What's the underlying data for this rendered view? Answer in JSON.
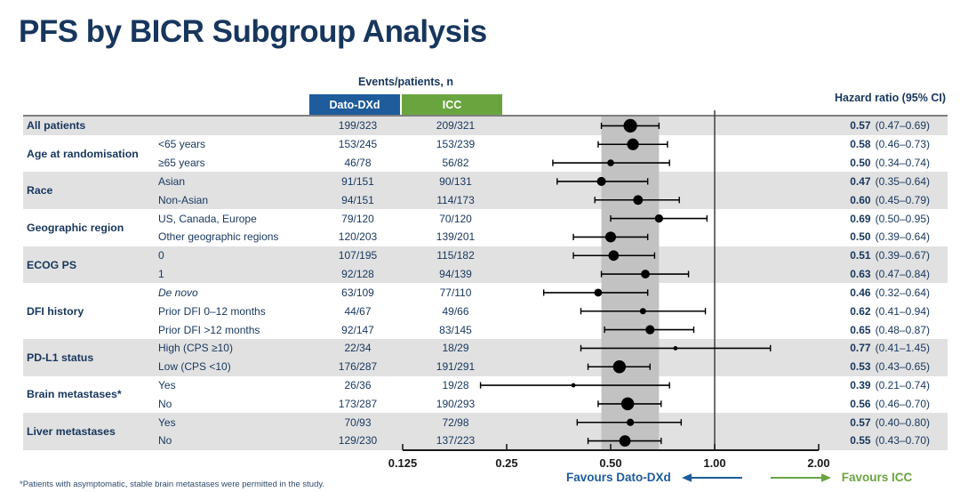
{
  "title": "PFS by BICR Subgroup Analysis",
  "header": {
    "events_label": "Events/patients, n",
    "arm1": "Dato-DXd",
    "arm2": "ICC",
    "hr_label": "Hazard ratio (95% CI)"
  },
  "colors": {
    "navy": "#17365d",
    "blue": "#1e5c9c",
    "green": "#6aa43f",
    "row_gray": "#e1e1e1",
    "band_gray": "#c2c2c2",
    "marker_black": "#000000"
  },
  "favours": {
    "left": "Favours Dato-DXd",
    "right": "Favours ICC"
  },
  "footnote": "*Patients with asymptomatic, stable brain metastases were permitted in the study.",
  "chart_data": {
    "type": "forest",
    "xscale": "log2",
    "xlim": [
      0.125,
      2.0
    ],
    "xticks": [
      0.125,
      0.25,
      0.5,
      1.0,
      2.0
    ],
    "xtick_labels": [
      "0.125",
      "0.25",
      "0.50",
      "1.00",
      "2.00"
    ],
    "reference_line": 1.0,
    "shaded_band": [
      0.47,
      0.69
    ],
    "groups": [
      {
        "label": "All patients",
        "shaded": true,
        "rows": [
          {
            "sub": "",
            "dato": "199/323",
            "icc": "209/321",
            "hr": 0.57,
            "lo": 0.47,
            "hi": 0.69,
            "hr_label": "0.57",
            "ci_label": "(0.47–0.69)"
          }
        ]
      },
      {
        "label": "Age at randomisation",
        "shaded": false,
        "rows": [
          {
            "sub": "<65 years",
            "dato": "153/245",
            "icc": "153/239",
            "hr": 0.58,
            "lo": 0.46,
            "hi": 0.73,
            "hr_label": "0.58",
            "ci_label": "(0.46–0.73)"
          },
          {
            "sub": "≥65 years",
            "dato": "46/78",
            "icc": "56/82",
            "hr": 0.5,
            "lo": 0.34,
            "hi": 0.74,
            "hr_label": "0.50",
            "ci_label": "(0.34–0.74)"
          }
        ]
      },
      {
        "label": "Race",
        "shaded": true,
        "rows": [
          {
            "sub": "Asian",
            "dato": "91/151",
            "icc": "90/131",
            "hr": 0.47,
            "lo": 0.35,
            "hi": 0.64,
            "hr_label": "0.47",
            "ci_label": "(0.35–0.64)"
          },
          {
            "sub": "Non-Asian",
            "dato": "94/151",
            "icc": "114/173",
            "hr": 0.6,
            "lo": 0.45,
            "hi": 0.79,
            "hr_label": "0.60",
            "ci_label": "(0.45–0.79)"
          }
        ]
      },
      {
        "label": "Geographic region",
        "shaded": false,
        "rows": [
          {
            "sub": "US, Canada, Europe",
            "dato": "79/120",
            "icc": "70/120",
            "hr": 0.69,
            "lo": 0.5,
            "hi": 0.95,
            "hr_label": "0.69",
            "ci_label": "(0.50–0.95)"
          },
          {
            "sub": "Other geographic regions",
            "dato": "120/203",
            "icc": "139/201",
            "hr": 0.5,
            "lo": 0.39,
            "hi": 0.64,
            "hr_label": "0.50",
            "ci_label": "(0.39–0.64)"
          }
        ]
      },
      {
        "label": "ECOG PS",
        "shaded": true,
        "rows": [
          {
            "sub": "0",
            "dato": "107/195",
            "icc": "115/182",
            "hr": 0.51,
            "lo": 0.39,
            "hi": 0.67,
            "hr_label": "0.51",
            "ci_label": "(0.39–0.67)"
          },
          {
            "sub": "1",
            "dato": "92/128",
            "icc": "94/139",
            "hr": 0.63,
            "lo": 0.47,
            "hi": 0.84,
            "hr_label": "0.63",
            "ci_label": "(0.47–0.84)"
          }
        ]
      },
      {
        "label": "DFI history",
        "shaded": false,
        "rows": [
          {
            "sub": "De novo",
            "italic": true,
            "dato": "63/109",
            "icc": "77/110",
            "hr": 0.46,
            "lo": 0.32,
            "hi": 0.64,
            "hr_label": "0.46",
            "ci_label": "(0.32–0.64)"
          },
          {
            "sub": "Prior DFI 0–12 months",
            "dato": "44/67",
            "icc": "49/66",
            "hr": 0.62,
            "lo": 0.41,
            "hi": 0.94,
            "hr_label": "0.62",
            "ci_label": "(0.41–0.94)"
          },
          {
            "sub": "Prior DFI >12 months",
            "dato": "92/147",
            "icc": "83/145",
            "hr": 0.65,
            "lo": 0.48,
            "hi": 0.87,
            "hr_label": "0.65",
            "ci_label": "(0.48–0.87)"
          }
        ]
      },
      {
        "label": "PD-L1 status",
        "shaded": true,
        "rows": [
          {
            "sub": "High (CPS ≥10)",
            "dato": "22/34",
            "icc": "18/29",
            "hr": 0.77,
            "lo": 0.41,
            "hi": 1.45,
            "hr_label": "0.77",
            "ci_label": "(0.41–1.45)"
          },
          {
            "sub": "Low (CPS <10)",
            "dato": "176/287",
            "icc": "191/291",
            "hr": 0.53,
            "lo": 0.43,
            "hi": 0.65,
            "hr_label": "0.53",
            "ci_label": "(0.43–0.65)"
          }
        ]
      },
      {
        "label": "Brain metastases*",
        "shaded": false,
        "rows": [
          {
            "sub": "Yes",
            "dato": "26/36",
            "icc": "19/28",
            "hr": 0.39,
            "lo": 0.21,
            "hi": 0.74,
            "hr_label": "0.39",
            "ci_label": "(0.21–0.74)"
          },
          {
            "sub": "No",
            "dato": "173/287",
            "icc": "190/293",
            "hr": 0.56,
            "lo": 0.46,
            "hi": 0.7,
            "hr_label": "0.56",
            "ci_label": "(0.46–0.70)"
          }
        ]
      },
      {
        "label": "Liver metastases",
        "shaded": true,
        "rows": [
          {
            "sub": "Yes",
            "dato": "70/93",
            "icc": "72/98",
            "hr": 0.57,
            "lo": 0.4,
            "hi": 0.8,
            "hr_label": "0.57",
            "ci_label": "(0.40–0.80)"
          },
          {
            "sub": "No",
            "dato": "129/230",
            "icc": "137/223",
            "hr": 0.55,
            "lo": 0.43,
            "hi": 0.7,
            "hr_label": "0.55",
            "ci_label": "(0.43–0.70)"
          }
        ]
      }
    ]
  }
}
